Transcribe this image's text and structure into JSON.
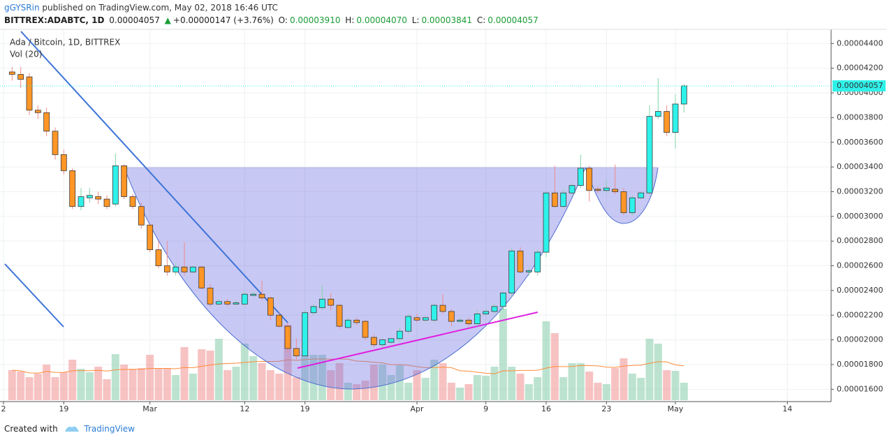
{
  "header": {
    "user": "gGYSRin",
    "published": "published on TradingView.com, May 02, 2018 16:46 UTC",
    "symbol": "BITTREX:ADABTC, 1D",
    "last": "0.00004057",
    "change": "+0.00000147 (+3.76%)",
    "o_label": "O:",
    "o": "0.00003910",
    "h_label": "H:",
    "h": "0.00004070",
    "l_label": "L:",
    "l": "0.00003841",
    "c_label": "C:",
    "c": "0.00004057"
  },
  "footer": {
    "created": "Created with",
    "brand": "TradingView"
  },
  "chart_data": {
    "type": "candlestick",
    "title": "Ada / Bitcoin, 1D, BITTREX",
    "volume_label": "Vol (20)",
    "up_color": "#2ef2ea",
    "down_color": "#ff9626",
    "up_wick_color": "#7fd8a8",
    "down_wick_color": "#f08a8a",
    "volume_up_color": "#8fd1b0",
    "volume_down_color": "#f29a9a",
    "volume_ma_color": "#ff8c3a",
    "grid": true,
    "xlim": [
      "2018-02-12",
      "2018-05-19"
    ],
    "xticks": [
      {
        "value": "2018-02-12",
        "label": "2"
      },
      {
        "value": "2018-02-19",
        "label": "19"
      },
      {
        "value": "2018-03-01",
        "label": "Mar"
      },
      {
        "value": "2018-03-12",
        "label": "12"
      },
      {
        "value": "2018-03-19",
        "label": "19"
      },
      {
        "value": "2018-04-01",
        "label": "Apr"
      },
      {
        "value": "2018-04-09",
        "label": "9"
      },
      {
        "value": "2018-04-16",
        "label": "16"
      },
      {
        "value": "2018-04-23",
        "label": "23"
      },
      {
        "value": "2018-05-01",
        "label": "May"
      },
      {
        "value": "2018-05-14",
        "label": "14"
      }
    ],
    "ylim": [
      1.5e-05,
      4.515e-05
    ],
    "yticks": [
      {
        "value": 1.6e-05,
        "label": "0.00001600"
      },
      {
        "value": 1.8e-05,
        "label": "0.00001800"
      },
      {
        "value": 2e-05,
        "label": "0.00002000"
      },
      {
        "value": 2.2e-05,
        "label": "0.00002200"
      },
      {
        "value": 2.4e-05,
        "label": "0.00002400"
      },
      {
        "value": 2.6e-05,
        "label": "0.00002600"
      },
      {
        "value": 2.8e-05,
        "label": "0.00002800"
      },
      {
        "value": 3e-05,
        "label": "0.00003000"
      },
      {
        "value": 3.2e-05,
        "label": "0.00003200"
      },
      {
        "value": 3.4e-05,
        "label": "0.00003400"
      },
      {
        "value": 3.6e-05,
        "label": "0.00003600"
      },
      {
        "value": 3.8e-05,
        "label": "0.00003800"
      },
      {
        "value": 4e-05,
        "label": "0.00004000"
      },
      {
        "value": 4.2e-05,
        "label": "0.00004200"
      },
      {
        "value": 4.4e-05,
        "label": "0.00004400"
      }
    ],
    "x": [
      "2018-02-13",
      "2018-02-14",
      "2018-02-15",
      "2018-02-16",
      "2018-02-17",
      "2018-02-18",
      "2018-02-19",
      "2018-02-20",
      "2018-02-21",
      "2018-02-22",
      "2018-02-23",
      "2018-02-24",
      "2018-02-25",
      "2018-02-26",
      "2018-02-27",
      "2018-02-28",
      "2018-03-01",
      "2018-03-02",
      "2018-03-03",
      "2018-03-04",
      "2018-03-05",
      "2018-03-06",
      "2018-03-07",
      "2018-03-08",
      "2018-03-09",
      "2018-03-10",
      "2018-03-11",
      "2018-03-12",
      "2018-03-13",
      "2018-03-14",
      "2018-03-15",
      "2018-03-16",
      "2018-03-17",
      "2018-03-18",
      "2018-03-19",
      "2018-03-20",
      "2018-03-21",
      "2018-03-22",
      "2018-03-23",
      "2018-03-24",
      "2018-03-25",
      "2018-03-26",
      "2018-03-27",
      "2018-03-28",
      "2018-03-29",
      "2018-03-30",
      "2018-03-31",
      "2018-04-01",
      "2018-04-02",
      "2018-04-03",
      "2018-04-04",
      "2018-04-05",
      "2018-04-06",
      "2018-04-07",
      "2018-04-08",
      "2018-04-09",
      "2018-04-10",
      "2018-04-11",
      "2018-04-12",
      "2018-04-13",
      "2018-04-14",
      "2018-04-15",
      "2018-04-16",
      "2018-04-17",
      "2018-04-18",
      "2018-04-19",
      "2018-04-20",
      "2018-04-21",
      "2018-04-22",
      "2018-04-23",
      "2018-04-24",
      "2018-04-25",
      "2018-04-26",
      "2018-04-27",
      "2018-04-28",
      "2018-04-29",
      "2018-04-30",
      "2018-05-01",
      "2018-05-02"
    ],
    "open": [
      4.17e-05,
      4.15e-05,
      4.13e-05,
      3.86e-05,
      3.84e-05,
      3.69e-05,
      3.5e-05,
      3.37e-05,
      3.08e-05,
      3.15e-05,
      3.16e-05,
      3.14e-05,
      3.1e-05,
      3.41e-05,
      3.16e-05,
      3.08e-05,
      2.93e-05,
      2.73e-05,
      2.6e-05,
      2.55e-05,
      2.59e-05,
      2.55e-05,
      2.59e-05,
      2.42e-05,
      2.29e-05,
      2.31e-05,
      2.29e-05,
      2.29e-05,
      2.36e-05,
      2.37e-05,
      2.34e-05,
      2.2e-05,
      2.11e-05,
      1.93e-05,
      1.87e-05,
      2.22e-05,
      2.26e-05,
      2.33e-05,
      2.28e-05,
      2.1e-05,
      2.16e-05,
      2.15e-05,
      2.02e-05,
      1.96e-05,
      1.98e-05,
      2.01e-05,
      2.07e-05,
      2.18e-05,
      2.16e-05,
      2.16e-05,
      2.28e-05,
      2.23e-05,
      2.15e-05,
      2.16e-05,
      2.13e-05,
      2.21e-05,
      2.23e-05,
      2.27e-05,
      2.38e-05,
      2.72e-05,
      2.55e-05,
      2.55e-05,
      2.71e-05,
      3.19e-05,
      3.08e-05,
      3.19e-05,
      3.25e-05,
      3.39e-05,
      3.22e-05,
      3.21e-05,
      3.22e-05,
      3.2e-05,
      3.03e-05,
      3.15e-05,
      3.19e-05,
      3.81e-05,
      3.85e-05,
      3.68e-05,
      3.91e-05
    ],
    "high": [
      4.21e-05,
      4.21e-05,
      4.16e-05,
      3.9e-05,
      3.88e-05,
      3.72e-05,
      3.54e-05,
      3.39e-05,
      3.23e-05,
      3.23e-05,
      3.2e-05,
      3.17e-05,
      3.51e-05,
      3.42e-05,
      3.18e-05,
      3.11e-05,
      2.94e-05,
      2.8e-05,
      2.8e-05,
      2.62e-05,
      2.79e-05,
      2.6e-05,
      2.6e-05,
      2.45e-05,
      2.33e-05,
      2.33e-05,
      2.32e-05,
      2.39e-05,
      2.39e-05,
      2.48e-05,
      2.35e-05,
      2.22e-05,
      2.14e-05,
      2.01e-05,
      2.24e-05,
      2.29e-05,
      2.44e-05,
      2.38e-05,
      2.29e-05,
      2.18e-05,
      2.18e-05,
      2.16e-05,
      2.04e-05,
      2.01e-05,
      2.01e-05,
      2.1e-05,
      2.21e-05,
      2.21e-05,
      2.19e-05,
      2.29e-05,
      2.37e-05,
      2.25e-05,
      2.18e-05,
      2.18e-05,
      2.24e-05,
      2.25e-05,
      2.29e-05,
      2.39e-05,
      2.75e-05,
      2.75e-05,
      2.58e-05,
      2.73e-05,
      3.2e-05,
      3.41e-05,
      3.22e-05,
      3.27e-05,
      3.5e-05,
      3.41e-05,
      3.24e-05,
      3.29e-05,
      3.42e-05,
      3.23e-05,
      3.17e-05,
      3.2e-05,
      3.9e-05,
      4.12e-05,
      3.9e-05,
      3.99e-05,
      4.07e-05
    ],
    "low": [
      4.1e-05,
      4.04e-05,
      3.82e-05,
      3.79e-05,
      3.65e-05,
      3.46e-05,
      3.34e-05,
      3.06e-05,
      3.05e-05,
      3.11e-05,
      3.1e-05,
      3.06e-05,
      3.08e-05,
      3.14e-05,
      3.06e-05,
      2.9e-05,
      2.71e-05,
      2.58e-05,
      2.52e-05,
      2.52e-05,
      2.52e-05,
      2.54e-05,
      2.41e-05,
      2.27e-05,
      2.28e-05,
      2.27e-05,
      2.28e-05,
      2.27e-05,
      2.35e-05,
      2.32e-05,
      2.16e-05,
      2.1e-05,
      1.9e-05,
      1.84e-05,
      1.86e-05,
      2.2e-05,
      2.24e-05,
      2.24e-05,
      2.09e-05,
      2.09e-05,
      2.12e-05,
      2e-05,
      1.94e-05,
      1.94e-05,
      1.97e-05,
      1.98e-05,
      2.05e-05,
      2.14e-05,
      2.14e-05,
      2.14e-05,
      2.21e-05,
      2.11e-05,
      2.14e-05,
      2.11e-05,
      2.11e-05,
      2.2e-05,
      2.21e-05,
      2.24e-05,
      2.35e-05,
      2.54e-05,
      2.52e-05,
      2.52e-05,
      2.67e-05,
      3.07e-05,
      3.07e-05,
      3.17e-05,
      3.23e-05,
      3.12e-05,
      3.19e-05,
      3.19e-05,
      3.18e-05,
      3.01e-05,
      3.01e-05,
      3.14e-05,
      3.17e-05,
      3.79e-05,
      3.65e-05,
      3.55e-05,
      3.841e-05
    ],
    "close": [
      4.15e-05,
      4.11e-05,
      3.86e-05,
      3.84e-05,
      3.69e-05,
      3.5e-05,
      3.37e-05,
      3.08e-05,
      3.16e-05,
      3.17e-05,
      3.14e-05,
      3.08e-05,
      3.41e-05,
      3.16e-05,
      3.08e-05,
      2.93e-05,
      2.73e-05,
      2.6e-05,
      2.55e-05,
      2.59e-05,
      2.55e-05,
      2.59e-05,
      2.42e-05,
      2.29e-05,
      2.31e-05,
      2.29e-05,
      2.3e-05,
      2.37e-05,
      2.37e-05,
      2.34e-05,
      2.2e-05,
      2.11e-05,
      1.93e-05,
      1.87e-05,
      2.22e-05,
      2.27e-05,
      2.33e-05,
      2.28e-05,
      2.11e-05,
      2.16e-05,
      2.14e-05,
      2.02e-05,
      1.96e-05,
      2e-05,
      2.01e-05,
      2.07e-05,
      2.19e-05,
      2.16e-05,
      2.18e-05,
      2.28e-05,
      2.23e-05,
      2.15e-05,
      2.16e-05,
      2.13e-05,
      2.21e-05,
      2.23e-05,
      2.27e-05,
      2.38e-05,
      2.72e-05,
      2.55e-05,
      2.56e-05,
      2.71e-05,
      3.19e-05,
      3.08e-05,
      3.19e-05,
      3.25e-05,
      3.39e-05,
      3.21e-05,
      3.21e-05,
      3.23e-05,
      3.2e-05,
      3.03e-05,
      3.15e-05,
      3.19e-05,
      3.81e-05,
      3.85e-05,
      3.68e-05,
      3.91e-05,
      4.057e-05
    ],
    "volume": [
      43,
      41,
      33,
      38,
      51,
      33,
      40,
      58,
      45,
      40,
      48,
      30,
      66,
      51,
      45,
      46,
      65,
      46,
      46,
      36,
      76,
      38,
      73,
      71,
      88,
      43,
      48,
      81,
      63,
      53,
      43,
      38,
      108,
      33,
      65,
      65,
      65,
      43,
      53,
      25,
      23,
      28,
      51,
      51,
      36,
      50,
      25,
      43,
      32,
      58,
      53,
      25,
      18,
      23,
      36,
      35,
      48,
      131,
      48,
      38,
      23,
      33,
      113,
      96,
      33,
      53,
      53,
      41,
      25,
      23,
      46,
      60,
      38,
      32,
      88,
      81,
      43,
      42,
      25
    ]
  }
}
